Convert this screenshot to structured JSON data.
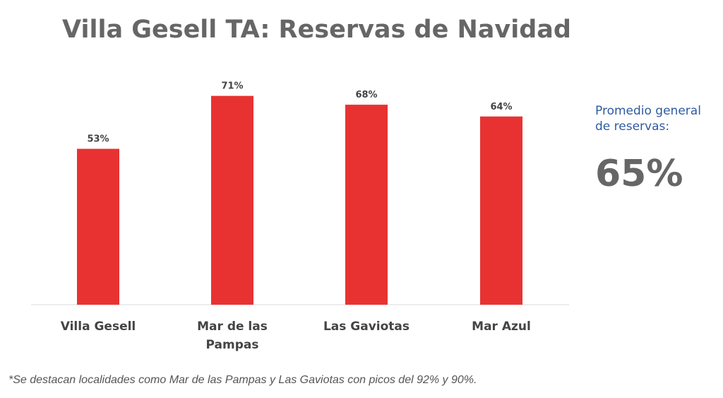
{
  "title": "Villa Gesell TA: Reservas de Navidad",
  "summary": {
    "label": "Promedio general de reservas:",
    "value": "65%"
  },
  "footnote": "*Se destacan localidades como Mar de las Pampas y Las Gaviotas con picos del 92% y 90%.",
  "colors": {
    "bar": "#e83232",
    "title": "#666666",
    "summary_label": "#2e5aa0",
    "axis": "#d9d9d9"
  },
  "chart_data": {
    "type": "bar",
    "title": "Villa Gesell TA: Reservas de Navidad",
    "categories": [
      "Villa Gesell",
      "Mar de las Pampas",
      "Las Gaviotas",
      "Mar Azul"
    ],
    "category_lines": [
      [
        "Villa Gesell"
      ],
      [
        "Mar de las",
        "Pampas"
      ],
      [
        "Las Gaviotas"
      ],
      [
        "Mar Azul"
      ]
    ],
    "values": [
      53,
      71,
      68,
      64
    ],
    "data_labels": [
      "53%",
      "71%",
      "68%",
      "64%"
    ],
    "unit": "%",
    "ylim": [
      0,
      100
    ],
    "grid": false,
    "legend": "none"
  }
}
